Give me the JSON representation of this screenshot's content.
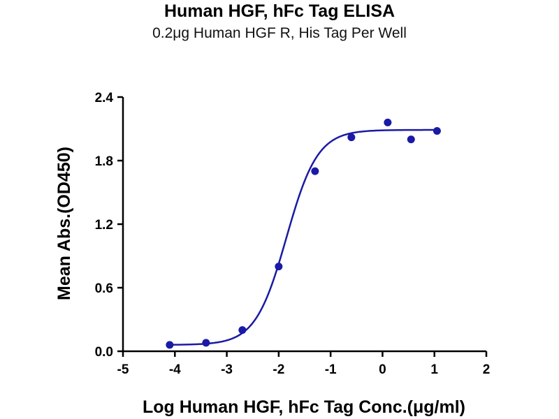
{
  "chart_data": {
    "type": "scatter",
    "title": "Human HGF, hFc Tag ELISA",
    "subtitle": "0.2μg Human HGF R, His Tag Per Well",
    "xlabel": "Log Human HGF, hFc Tag Conc.(μg/ml)",
    "ylabel": "Mean Abs.(OD450)",
    "xlim": [
      -5,
      2
    ],
    "ylim": [
      0,
      2.4
    ],
    "xticks": [
      -5,
      -4,
      -3,
      -2,
      -1,
      0,
      1,
      2
    ],
    "yticks": [
      0.0,
      0.6,
      1.2,
      1.8,
      2.4
    ],
    "xtick_labels": [
      "-5",
      "-4",
      "-3",
      "-2",
      "-1",
      "0",
      "1",
      "2"
    ],
    "ytick_labels": [
      "0.0",
      "0.6",
      "1.2",
      "1.8",
      "2.4"
    ],
    "grid": false,
    "color": "#1a1aa6",
    "series": [
      {
        "x": [
          -4.1,
          -3.4,
          -2.7,
          -2.0,
          -1.3,
          -0.6,
          0.1,
          0.55,
          1.05
        ],
        "y": [
          0.06,
          0.08,
          0.2,
          0.8,
          1.7,
          2.02,
          2.16,
          2.0,
          2.08
        ]
      }
    ],
    "fit_curve": {
      "model": "4PL",
      "bottom": 0.06,
      "top": 2.09,
      "log_ec50": -1.85,
      "hill": 1.45
    }
  }
}
